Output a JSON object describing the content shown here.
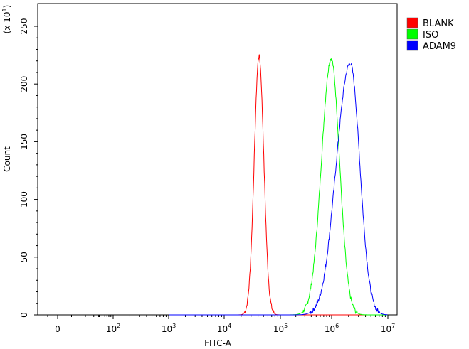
{
  "chart_data": {
    "type": "line",
    "title": "",
    "xlabel": "FITC-A",
    "ylabel": "Count",
    "y_multiplier_label": "(x 10",
    "y_multiplier_exp": "1",
    "y_multiplier_close": ")",
    "x_scale": "biexponential (log decades with linear region around 0)",
    "xlim": [
      -1,
      7
    ],
    "ylim": [
      0,
      270
    ],
    "grid": false,
    "legend_position": "right",
    "x_ticks": [
      {
        "value": 0,
        "base": "0",
        "exp": ""
      },
      {
        "value": 2,
        "base": "10",
        "exp": "2"
      },
      {
        "value": 3,
        "base": "10",
        "exp": "3"
      },
      {
        "value": 4,
        "base": "10",
        "exp": "4"
      },
      {
        "value": 5,
        "base": "10",
        "exp": "5"
      },
      {
        "value": 6,
        "base": "10",
        "exp": "6"
      },
      {
        "value": 7,
        "base": "10",
        "exp": "7"
      }
    ],
    "y_ticks": [
      0,
      50,
      100,
      150,
      200,
      250
    ],
    "series": [
      {
        "name": "BLANK",
        "color": "#ff0000",
        "peak_log10_x": 4.62,
        "peak_count": 224,
        "width_log": 0.085,
        "skew": 1.0
      },
      {
        "name": "ISO",
        "color": "#00ff00",
        "peak_log10_x": 5.99,
        "peak_count": 222,
        "width_log": 0.15,
        "skew": 1.25
      },
      {
        "name": "ADAM9",
        "color": "#0000ff",
        "peak_log10_x": 6.33,
        "peak_count": 218,
        "width_log": 0.17,
        "skew": 1.45
      }
    ]
  }
}
